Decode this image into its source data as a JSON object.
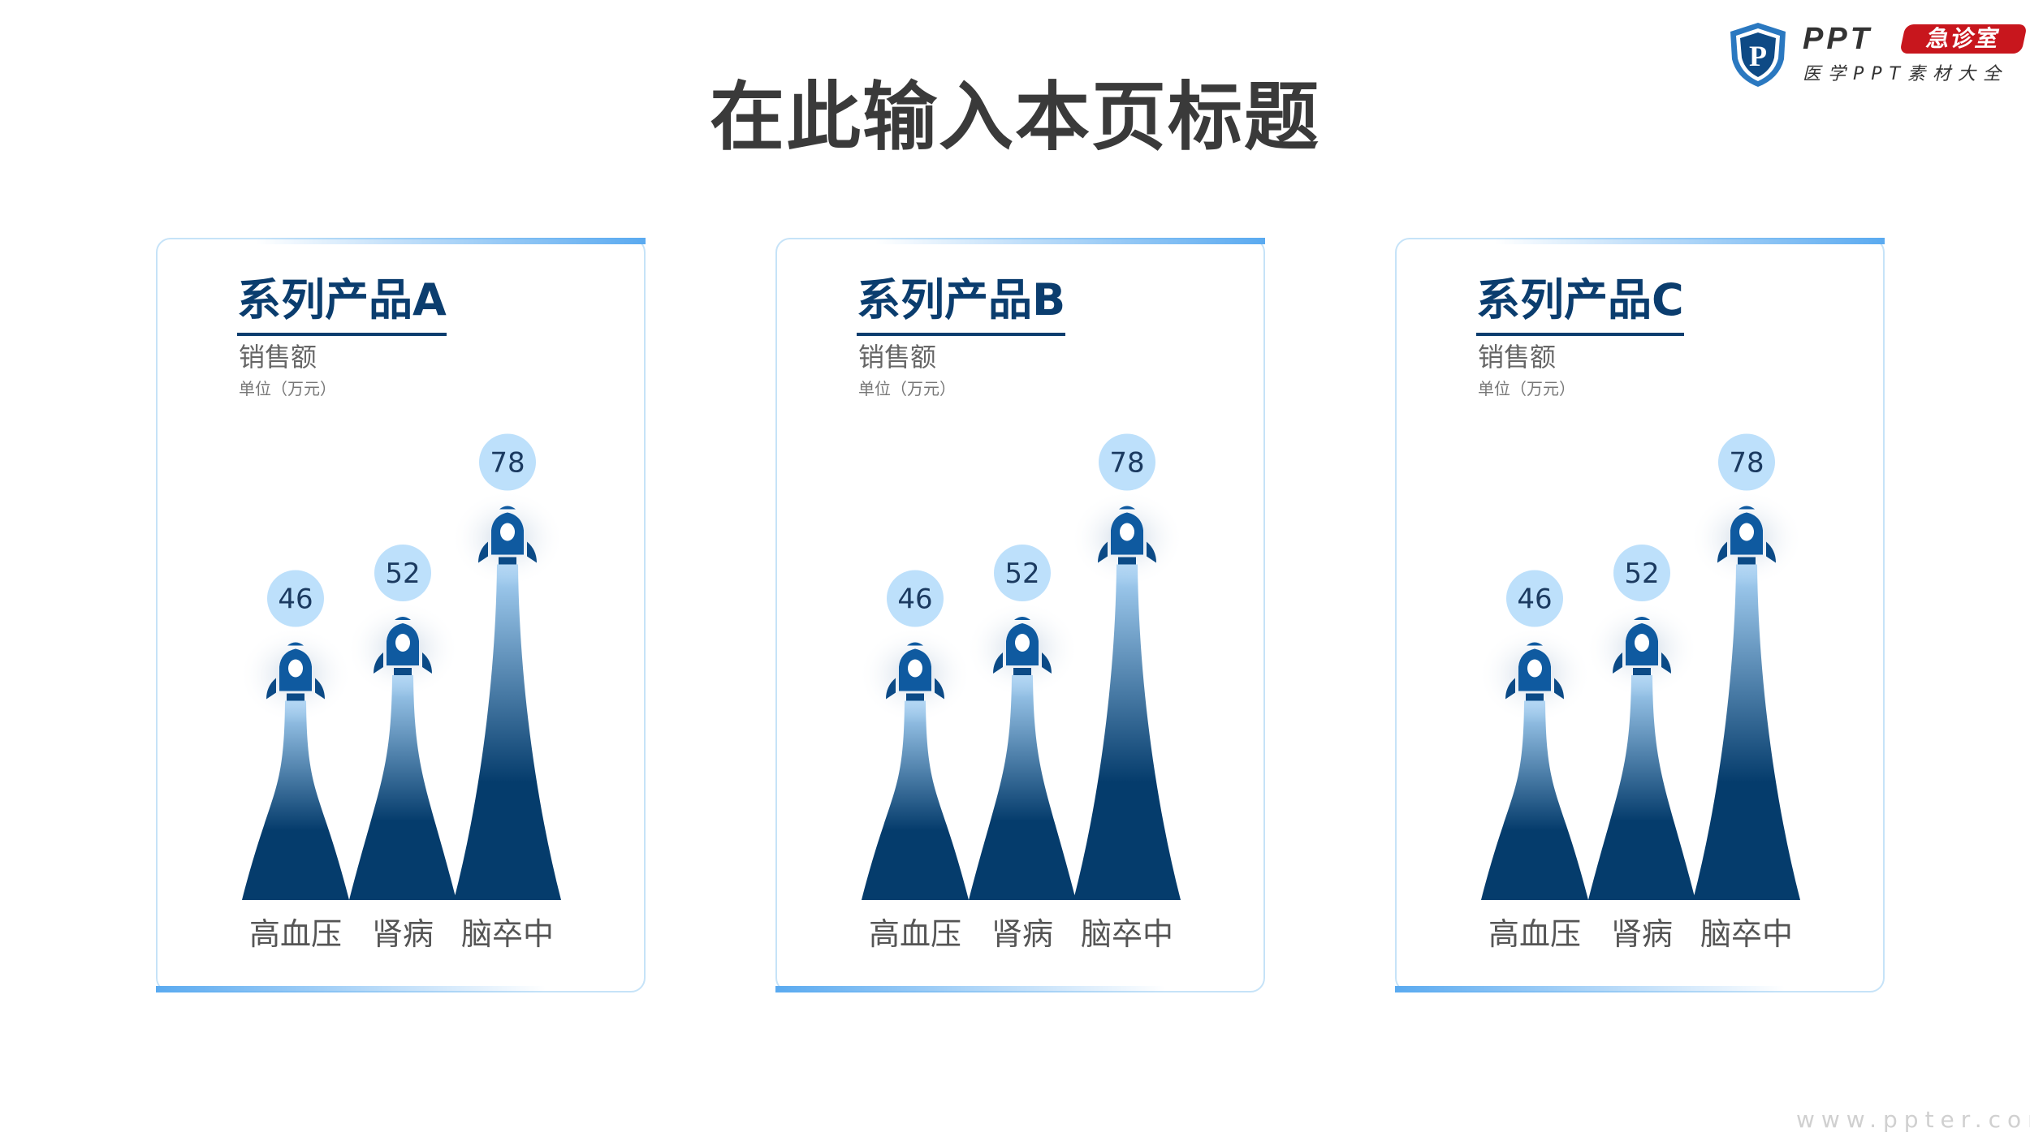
{
  "title": "在此输入本页标题",
  "logo": {
    "brand": "PPT",
    "tag": "急诊室",
    "subtitle": "医学PPT素材大全",
    "shield_letter": "P"
  },
  "watermark": "www.ppter.com",
  "colors": {
    "title": "#3a3a3a",
    "accent": "#0b3d6e",
    "bubble": "#bde0fb",
    "flame_top": "#a9d4f7",
    "flame_bottom": "#053c6c",
    "card_border": "#c6e3f8",
    "logo_red": "#c8161d"
  },
  "chart_data": [
    {
      "type": "bar",
      "style": "rocket",
      "title": "系列产品A",
      "ylabel": "销售额",
      "unit": "单位（万元）",
      "categories": [
        "高血压",
        "肾病",
        "脑卒中"
      ],
      "values": [
        46,
        52,
        78
      ]
    },
    {
      "type": "bar",
      "style": "rocket",
      "title": "系列产品B",
      "ylabel": "销售额",
      "unit": "单位（万元）",
      "categories": [
        "高血压",
        "肾病",
        "脑卒中"
      ],
      "values": [
        46,
        52,
        78
      ]
    },
    {
      "type": "bar",
      "style": "rocket",
      "title": "系列产品C",
      "ylabel": "销售额",
      "unit": "单位（万元）",
      "categories": [
        "高血压",
        "肾病",
        "脑卒中"
      ],
      "values": [
        46,
        52,
        78
      ]
    }
  ]
}
